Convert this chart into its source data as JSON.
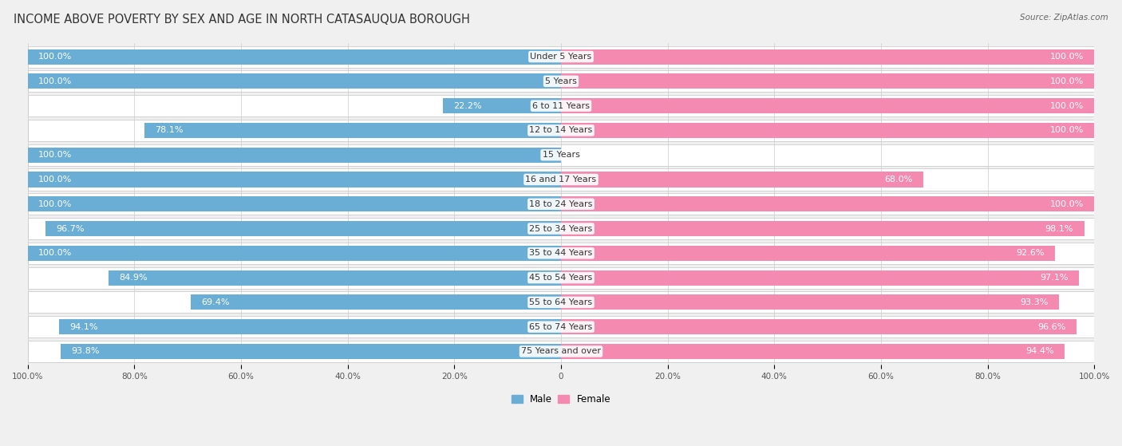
{
  "title": "INCOME ABOVE POVERTY BY SEX AND AGE IN NORTH CATASAUQUA BOROUGH",
  "source": "Source: ZipAtlas.com",
  "categories": [
    "Under 5 Years",
    "5 Years",
    "6 to 11 Years",
    "12 to 14 Years",
    "15 Years",
    "16 and 17 Years",
    "18 to 24 Years",
    "25 to 34 Years",
    "35 to 44 Years",
    "45 to 54 Years",
    "55 to 64 Years",
    "65 to 74 Years",
    "75 Years and over"
  ],
  "male_values": [
    100.0,
    100.0,
    22.2,
    78.1,
    100.0,
    100.0,
    100.0,
    96.7,
    100.0,
    84.9,
    69.4,
    94.1,
    93.8
  ],
  "female_values": [
    100.0,
    100.0,
    100.0,
    100.0,
    0.0,
    68.0,
    100.0,
    98.1,
    92.6,
    97.1,
    93.3,
    96.6,
    94.4
  ],
  "male_color": "#6aaed6",
  "female_color": "#f48ab0",
  "male_label": "Male",
  "female_label": "Female",
  "bar_height": 0.62,
  "background_color": "#f0f0f0",
  "bar_background_color": "#ffffff",
  "title_fontsize": 10.5,
  "label_fontsize": 8.0,
  "tick_fontsize": 7.5,
  "source_fontsize": 7.5,
  "x_tick_labels": [
    "100.0%",
    "80.0%",
    "60.0%",
    "40.0%",
    "20.0%",
    "0",
    "20.0%",
    "40.0%",
    "60.0%",
    "80.0%",
    "100.0%"
  ],
  "x_tick_positions": [
    -100,
    -80,
    -60,
    -40,
    -20,
    0,
    20,
    40,
    60,
    80,
    100
  ]
}
